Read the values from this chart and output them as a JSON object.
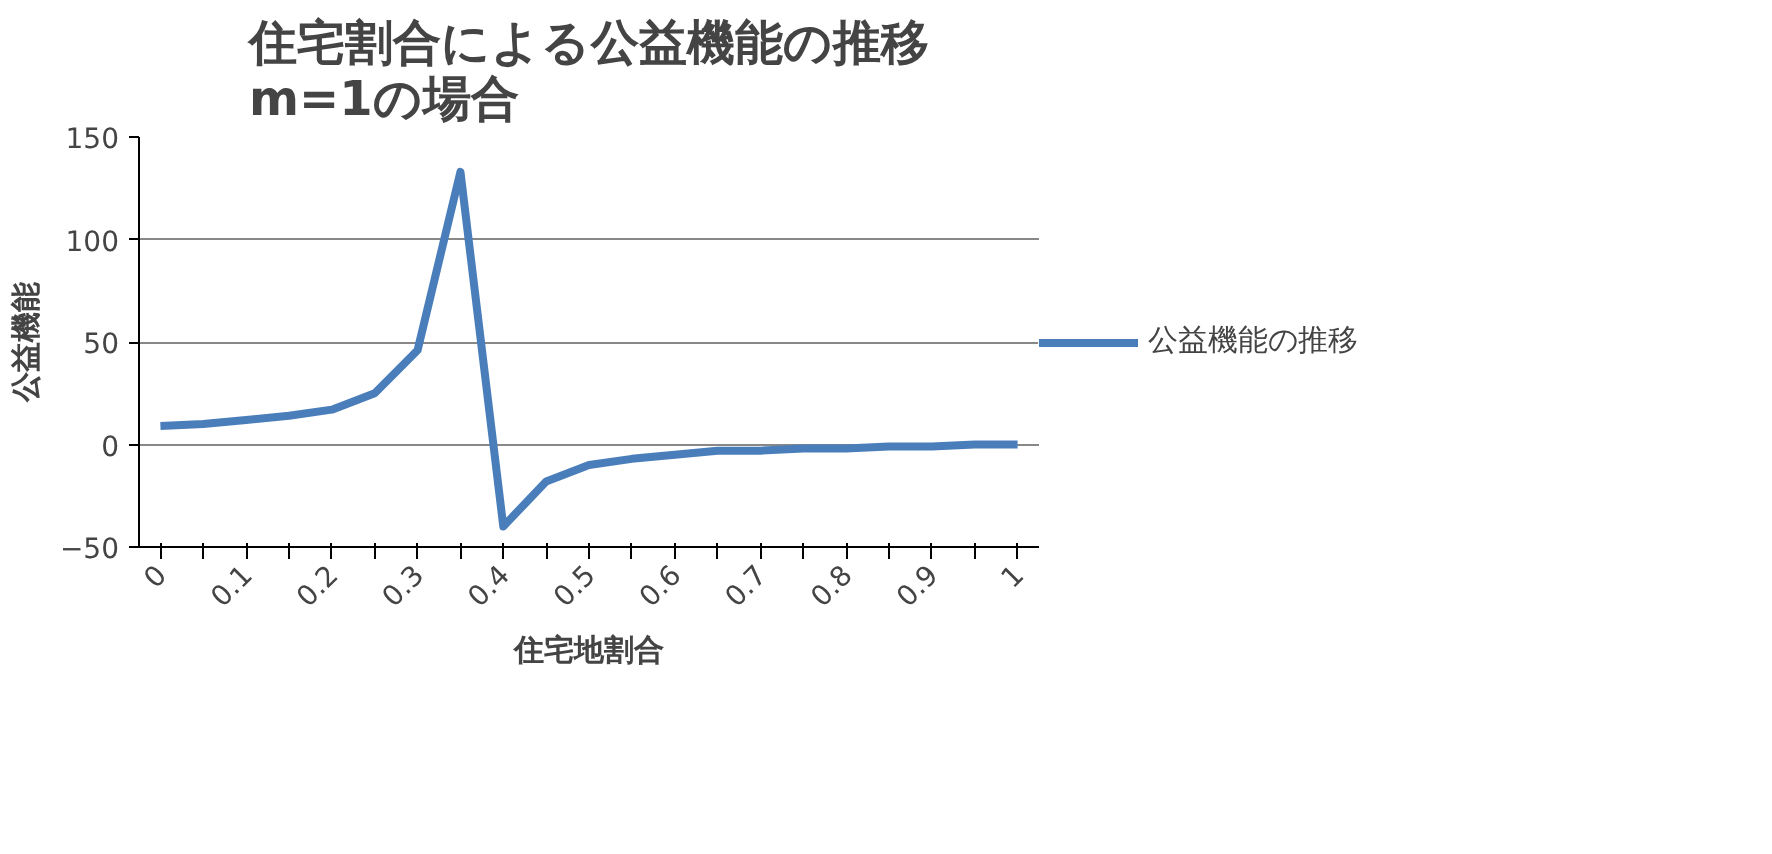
{
  "chart_data": {
    "type": "line",
    "title": "住宅割合による公益機能の推移\nm=1の場合",
    "xlabel": "住宅地割合",
    "ylabel": "公益機能",
    "categories": [
      "0",
      null,
      "0.1",
      null,
      "0.2",
      null,
      "0.3",
      null,
      "0.4",
      null,
      "0.5",
      null,
      "0.6",
      null,
      "0.7",
      null,
      "0.8",
      null,
      "0.9",
      null,
      "1"
    ],
    "series": [
      {
        "name": "公益機能の推移",
        "color": "#4a7ebb",
        "values": [
          9,
          10,
          12,
          14,
          17,
          25,
          46,
          133,
          -40,
          -18,
          -10,
          -7,
          -5,
          -3,
          -3,
          -2,
          -2,
          -1,
          -1,
          0,
          0
        ]
      }
    ],
    "ylim": [
      -50,
      150
    ],
    "yticks": [
      -50,
      0,
      50,
      100,
      150
    ],
    "grid": "y",
    "legend": "right",
    "marker": "none",
    "line_style": "solid"
  }
}
